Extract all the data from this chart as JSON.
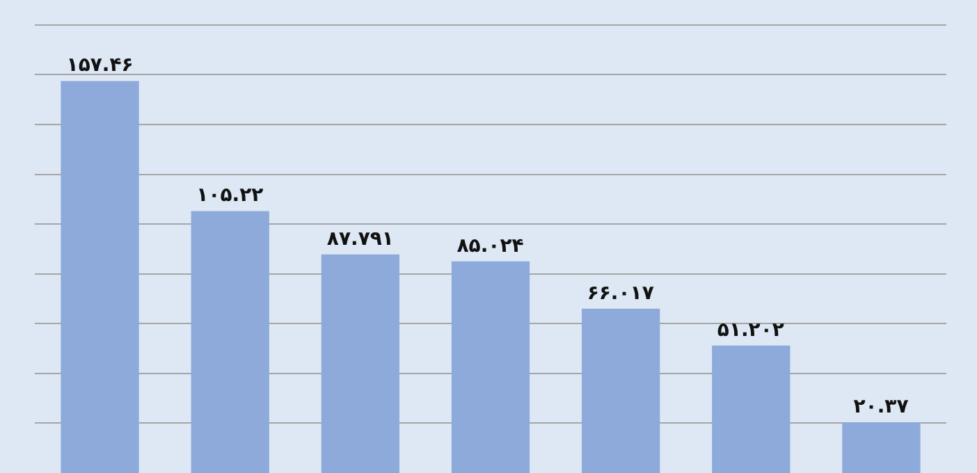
{
  "chart_data": {
    "type": "bar",
    "categories": [
      null,
      null,
      null,
      null,
      null,
      null,
      null
    ],
    "values": [
      157.46,
      105.22,
      87.791,
      85.024,
      66.017,
      51.202,
      20.37
    ],
    "value_labels": [
      "۱۵۷.۴۶",
      "۱۰۵.۲۲",
      "۸۷.۷۹۱",
      "۸۵.۰۲۴",
      "۶۶.۰۱۷",
      "۵۱.۲۰۲",
      "۲۰.۳۷"
    ],
    "color": "#8eaadb",
    "ylim": [
      0,
      190
    ],
    "yticks": [
      {
        "value": 20,
        "label": null
      },
      {
        "value": 40,
        "label": null
      },
      {
        "value": 60,
        "label": null
      },
      {
        "value": 80,
        "label": null
      },
      {
        "value": 100,
        "label": null
      },
      {
        "value": 120,
        "label": null
      },
      {
        "value": 140,
        "label": null
      },
      {
        "value": 160,
        "label": null
      },
      {
        "value": 180,
        "label": null
      }
    ],
    "grid": "y"
  }
}
